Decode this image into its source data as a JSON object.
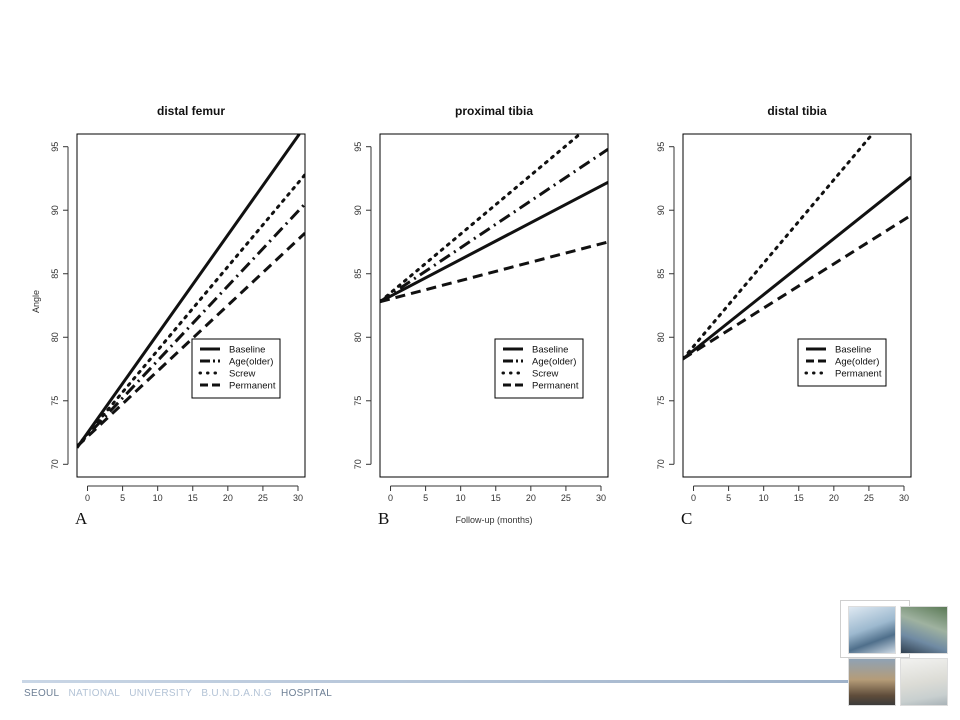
{
  "footer": {
    "words": [
      {
        "text": "SEOUL",
        "tone": "dark"
      },
      {
        "text": "NATIONAL",
        "tone": "light"
      },
      {
        "text": "UNIVERSITY",
        "tone": "light"
      },
      {
        "text": "B.U.N.D.A.N.G",
        "tone": "light"
      },
      {
        "text": "HOSPITAL",
        "tone": "dark"
      }
    ]
  },
  "colors": {
    "line": "#111111",
    "axis": "#333333",
    "frame": "#000000"
  },
  "chart_data": [
    {
      "type": "line",
      "panel_letter": "A",
      "title": "distal femur",
      "xlabel": "",
      "ylabel": "Angle",
      "xlim": [
        -1.5,
        31
      ],
      "ylim": [
        69,
        96
      ],
      "xticks": [
        0,
        5,
        10,
        15,
        20,
        25,
        30
      ],
      "yticks": [
        70,
        75,
        80,
        85,
        90,
        95
      ],
      "legend": {
        "position": "bottom-right",
        "entries": [
          "Baseline",
          "Age(older)",
          "Screw",
          "Permanent"
        ]
      },
      "series": [
        {
          "name": "Baseline",
          "style": "solid",
          "x": [
            -1.5,
            30.2
          ],
          "y": [
            71.3,
            96.0
          ]
        },
        {
          "name": "Age(older)",
          "style": "dashdot",
          "x": [
            -1.5,
            31
          ],
          "y": [
            71.4,
            90.5
          ]
        },
        {
          "name": "Screw",
          "style": "dotted",
          "x": [
            -1.5,
            31
          ],
          "y": [
            71.4,
            92.8
          ]
        },
        {
          "name": "Permanent",
          "style": "dashed",
          "x": [
            -1.5,
            31
          ],
          "y": [
            71.4,
            88.2
          ]
        }
      ]
    },
    {
      "type": "line",
      "panel_letter": "B",
      "title": "proximal tibia",
      "xlabel": "Follow-up (months)",
      "ylabel": "",
      "xlim": [
        -1.5,
        31
      ],
      "ylim": [
        69,
        96
      ],
      "xticks": [
        0,
        5,
        10,
        15,
        20,
        25,
        30
      ],
      "yticks": [
        70,
        75,
        80,
        85,
        90,
        95
      ],
      "legend": {
        "position": "bottom-right",
        "entries": [
          "Baseline",
          "Age(older)",
          "Screw",
          "Permanent"
        ]
      },
      "series": [
        {
          "name": "Baseline",
          "style": "solid",
          "x": [
            -1.5,
            31
          ],
          "y": [
            82.8,
            92.2
          ]
        },
        {
          "name": "Age(older)",
          "style": "dashdot",
          "x": [
            -1.5,
            31
          ],
          "y": [
            82.8,
            94.8
          ]
        },
        {
          "name": "Screw",
          "style": "dotted",
          "x": [
            -1.5,
            27
          ],
          "y": [
            82.8,
            96.0
          ]
        },
        {
          "name": "Permanent",
          "style": "dashed",
          "x": [
            -1.5,
            31
          ],
          "y": [
            82.8,
            87.5
          ]
        }
      ]
    },
    {
      "type": "line",
      "panel_letter": "C",
      "title": "distal tibia",
      "xlabel": "",
      "ylabel": "",
      "xlim": [
        -1.5,
        31
      ],
      "ylim": [
        69,
        96
      ],
      "xticks": [
        0,
        5,
        10,
        15,
        20,
        25,
        30
      ],
      "yticks": [
        70,
        75,
        80,
        85,
        90,
        95
      ],
      "legend": {
        "position": "bottom-right",
        "entries": [
          "Baseline",
          "Age(older)",
          "Permanent"
        ]
      },
      "series": [
        {
          "name": "Baseline",
          "style": "solid",
          "x": [
            -1.5,
            31
          ],
          "y": [
            78.3,
            92.6
          ]
        },
        {
          "name": "Age(older)",
          "style": "dashed",
          "x": [
            -1.5,
            31
          ],
          "y": [
            78.3,
            89.6
          ]
        },
        {
          "name": "Permanent",
          "style": "dotted",
          "x": [
            -1.5,
            25.5
          ],
          "y": [
            78.3,
            96.0
          ]
        }
      ]
    }
  ]
}
